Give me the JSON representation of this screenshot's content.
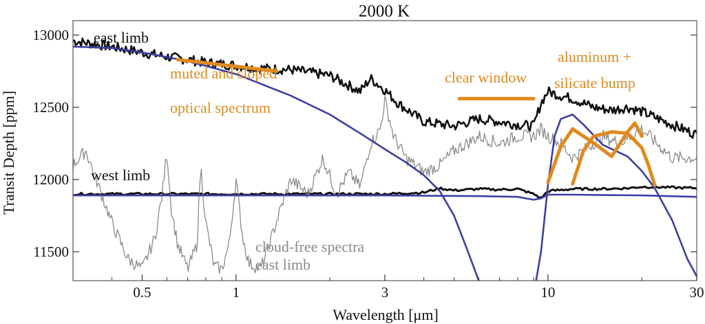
{
  "chart_data": {
    "type": "line",
    "title": "2000 K",
    "xlabel": "Wavelength [μm]",
    "ylabel": "Transit Depth [ppm]",
    "x_scale": "log",
    "xlim": [
      0.3,
      30
    ],
    "ylim": [
      11300,
      13100
    ],
    "x_ticks": [
      {
        "value": 0.5,
        "label": "0.5"
      },
      {
        "value": 1,
        "label": "1"
      },
      {
        "value": 3,
        "label": "3"
      },
      {
        "value": 10,
        "label": "10"
      },
      {
        "value": 30,
        "label": "30"
      }
    ],
    "y_ticks": [
      {
        "value": 11500,
        "label": "11500"
      },
      {
        "value": 12000,
        "label": "12000"
      },
      {
        "value": 12500,
        "label": "12500"
      },
      {
        "value": 13000,
        "label": "13000"
      }
    ],
    "grid": false,
    "colors": {
      "cloudy_spectra": "#111111",
      "cloud_free": "#8a8a8a",
      "model": "#3b3fa3",
      "annotation": "#e08a1e"
    },
    "series": [
      {
        "style": "cloudy-east",
        "x": [
          0.3,
          0.4,
          0.5,
          0.6,
          0.7,
          0.8,
          1.0,
          1.2,
          1.5,
          2.0,
          2.5,
          2.7,
          3.0,
          3.3,
          4.0,
          5.0,
          6.0,
          7.0,
          8.0,
          9.0,
          9.5,
          10.0,
          11.0,
          12.0,
          14.0,
          16.0,
          18.0,
          20.0,
          25.0,
          30.0
        ],
        "y": [
          12960,
          12920,
          12880,
          12850,
          12830,
          12810,
          12790,
          12770,
          12760,
          12720,
          12610,
          12700,
          12620,
          12530,
          12400,
          12370,
          12420,
          12400,
          12380,
          12370,
          12530,
          12610,
          12580,
          12560,
          12500,
          12480,
          12500,
          12470,
          12380,
          12310
        ]
      },
      {
        "style": "cloudy-west",
        "x": [
          0.3,
          1.0,
          2.0,
          3.0,
          4.0,
          4.5,
          5.0,
          6.0,
          7.0,
          8.0,
          9.0,
          9.5,
          10.0,
          12.0,
          15.0,
          18.0,
          20.0,
          25.0,
          30.0
        ],
        "y": [
          11900,
          11900,
          11900,
          11900,
          11910,
          11940,
          11925,
          11935,
          11930,
          11935,
          11900,
          11870,
          11920,
          11935,
          11935,
          11940,
          11950,
          11945,
          11940
        ]
      },
      {
        "style": "cloud-free",
        "x": [
          0.3,
          0.33,
          0.37,
          0.4,
          0.45,
          0.5,
          0.55,
          0.58,
          0.6,
          0.62,
          0.65,
          0.7,
          0.75,
          0.77,
          0.8,
          0.85,
          0.9,
          0.95,
          1.0,
          1.05,
          1.1,
          1.2,
          1.3,
          1.4,
          1.5,
          1.7,
          1.9,
          2.1,
          2.3,
          2.5,
          2.7,
          2.9,
          3.0,
          3.2,
          3.5,
          4.0,
          4.5,
          5.0,
          5.5,
          6.0,
          7.0,
          8.0,
          9.0,
          9.5,
          10.0,
          11.0,
          12.0,
          13.0,
          15.0,
          17.0,
          20.0,
          25.0,
          30.0
        ],
        "y": [
          12100,
          12200,
          11900,
          11700,
          11450,
          11380,
          11600,
          11900,
          12200,
          11800,
          11550,
          11380,
          11550,
          12100,
          11700,
          11400,
          11380,
          11550,
          12000,
          11600,
          11420,
          11380,
          11600,
          11820,
          12000,
          11900,
          12150,
          11900,
          12050,
          11950,
          12250,
          12350,
          12550,
          12300,
          12150,
          12050,
          12100,
          12200,
          12250,
          12300,
          12250,
          12300,
          12300,
          12350,
          12300,
          12250,
          12150,
          12200,
          12300,
          12250,
          12350,
          12150,
          12150
        ]
      },
      {
        "style": "model-east",
        "x": [
          0.3,
          0.4,
          0.5,
          0.7,
          1.0,
          1.5,
          2.0,
          2.5,
          3.0,
          3.5,
          4.0,
          4.5,
          5.0,
          5.5,
          6.0,
          6.5,
          7.0,
          7.5,
          8.0,
          8.5,
          9.0,
          9.5,
          10.0,
          10.5,
          11.0,
          12.0,
          13.0,
          15.0,
          18.0,
          20.0,
          22.0,
          25.0,
          28.0,
          30.0
        ],
        "y": [
          12920,
          12910,
          12880,
          12820,
          12730,
          12580,
          12450,
          12320,
          12210,
          12120,
          12030,
          11920,
          11750,
          11520,
          11300,
          11200,
          11200,
          11200,
          11200,
          11200,
          11200,
          11500,
          11960,
          12300,
          12420,
          12450,
          12380,
          12240,
          12160,
          12060,
          11940,
          11720,
          11450,
          11330
        ]
      },
      {
        "style": "model-west",
        "x": [
          0.3,
          1.0,
          3.0,
          6.0,
          8.0,
          9.0,
          9.5,
          10.0,
          12.0,
          20.0,
          30.0
        ],
        "y": [
          11890,
          11890,
          11890,
          11885,
          11880,
          11860,
          11870,
          11895,
          11895,
          11890,
          11880
        ]
      }
    ],
    "highlights": [
      {
        "style": "short-line",
        "x": [
          0.65,
          1.35
        ],
        "y": [
          12830,
          12750
        ]
      },
      {
        "style": "short-line",
        "x": [
          5.2,
          9.0
        ],
        "y": [
          12560,
          12560
        ]
      },
      {
        "style": "bump",
        "x": [
          10.0,
          11.0,
          12.0,
          13.0,
          14.5,
          16.0,
          18.0,
          19.0,
          20.0
        ],
        "y": [
          11980,
          12230,
          12350,
          12300,
          12230,
          12160,
          12330,
          12390,
          12300
        ]
      },
      {
        "style": "bump",
        "x": [
          12.0,
          13.0,
          14.0,
          16.0,
          18.0,
          20.0,
          21.0,
          22.0
        ],
        "y": [
          11970,
          12200,
          12300,
          12330,
          12320,
          12220,
          12100,
          11960
        ]
      }
    ],
    "annotations": [
      {
        "id": "east-limb",
        "text": "east limb"
      },
      {
        "id": "west-limb",
        "text": "west limb"
      },
      {
        "id": "muted-1",
        "text": "muted and sloped"
      },
      {
        "id": "muted-2",
        "text": "optical spectrum"
      },
      {
        "id": "clear-window",
        "text": "clear window"
      },
      {
        "id": "alum-1",
        "text": "aluminum +"
      },
      {
        "id": "alum-2",
        "text": "silicate bump"
      },
      {
        "id": "cloudfree-1",
        "text": "cloud-free spectra"
      },
      {
        "id": "cloudfree-2",
        "text": "east limb"
      }
    ]
  }
}
